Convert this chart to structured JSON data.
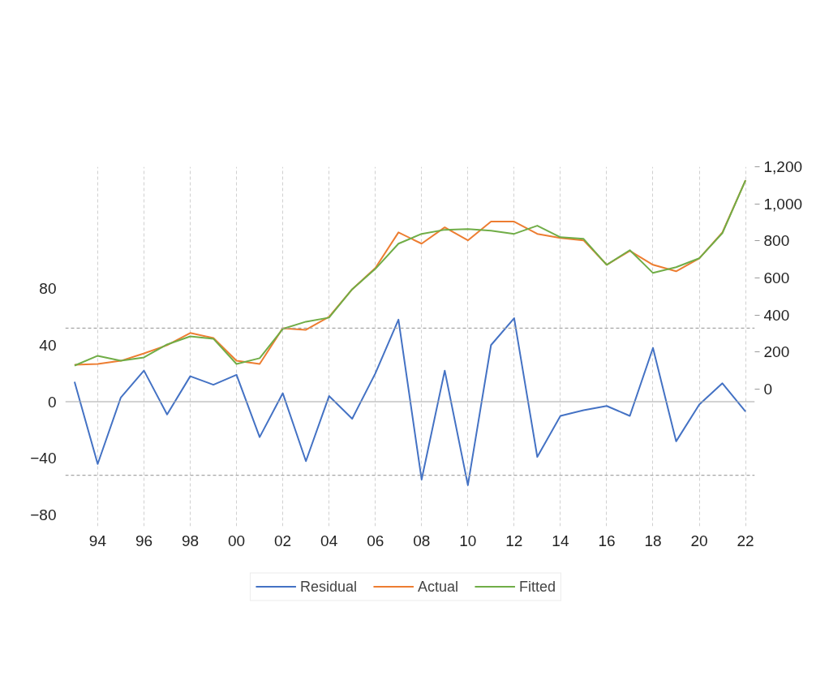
{
  "chart_data": {
    "type": "line",
    "x": [
      1993,
      1994,
      1995,
      1996,
      1997,
      1998,
      1999,
      2000,
      2001,
      2002,
      2003,
      2004,
      2005,
      2006,
      2007,
      2008,
      2009,
      2010,
      2011,
      2012,
      2013,
      2014,
      2015,
      2016,
      2017,
      2018,
      2019,
      2020,
      2021,
      2022
    ],
    "series": [
      {
        "name": "Residual",
        "color": "#4472c4",
        "values": [
          14,
          -44,
          3,
          22,
          -9,
          18,
          12,
          19,
          -25,
          6,
          -42,
          4,
          -12,
          20,
          58,
          -55,
          22,
          -59,
          40,
          59,
          -39,
          -10,
          -6,
          -3,
          -10,
          38,
          -28,
          -2,
          13,
          -7
        ]
      },
      {
        "name": "Actual",
        "color": "#ed7d31",
        "axis": "y2",
        "values": [
          132,
          136,
          153,
          193,
          237,
          303,
          276,
          153,
          136,
          329,
          320,
          390,
          539,
          654,
          846,
          785,
          873,
          803,
          904,
          904,
          838,
          816,
          803,
          671,
          746,
          671,
          636,
          706,
          846,
          1127
        ]
      },
      {
        "name": "Fitted",
        "color": "#70ad47",
        "axis": "y2",
        "values": [
          127,
          180,
          153,
          171,
          241,
          285,
          272,
          136,
          167,
          325,
          364,
          386,
          539,
          649,
          785,
          838,
          860,
          864,
          855,
          838,
          882,
          820,
          811,
          671,
          750,
          627,
          658,
          706,
          842,
          1127
        ]
      }
    ],
    "xlim": [
      1992.6,
      2022.4
    ],
    "xticks": [
      {
        "value": 1994,
        "label": "94"
      },
      {
        "value": 1996,
        "label": "96"
      },
      {
        "value": 1998,
        "label": "98"
      },
      {
        "value": 2000,
        "label": "00"
      },
      {
        "value": 2002,
        "label": "02"
      },
      {
        "value": 2004,
        "label": "04"
      },
      {
        "value": 2006,
        "label": "06"
      },
      {
        "value": 2008,
        "label": "08"
      },
      {
        "value": 2010,
        "label": "10"
      },
      {
        "value": 2012,
        "label": "12"
      },
      {
        "value": 2014,
        "label": "14"
      },
      {
        "value": 2016,
        "label": "16"
      },
      {
        "value": 2018,
        "label": "18"
      },
      {
        "value": 2020,
        "label": "20"
      },
      {
        "value": 2022,
        "label": "22"
      }
    ],
    "ylim": [
      -88,
      166
    ],
    "yticks": [
      -80,
      -40,
      0,
      40,
      80
    ],
    "y2lim": [
      -740,
      1200
    ],
    "y2ticks": [
      0,
      200,
      400,
      600,
      800,
      {
        "value": 1000,
        "label": "1,000"
      },
      {
        "value": 1200,
        "label": "1,200"
      }
    ],
    "ref_lines": [
      {
        "axis": "y",
        "value": 0,
        "color": "#a6a6a6",
        "line_style": "solid"
      },
      {
        "axis": "y",
        "value": 52,
        "color": "#a6a6a6",
        "line_style": "dashed"
      },
      {
        "axis": "y",
        "value": -52,
        "color": "#a6a6a6",
        "line_style": "dashed"
      }
    ],
    "grid": "x",
    "legend": "bottom",
    "line_style": "solid",
    "marker": "none"
  }
}
